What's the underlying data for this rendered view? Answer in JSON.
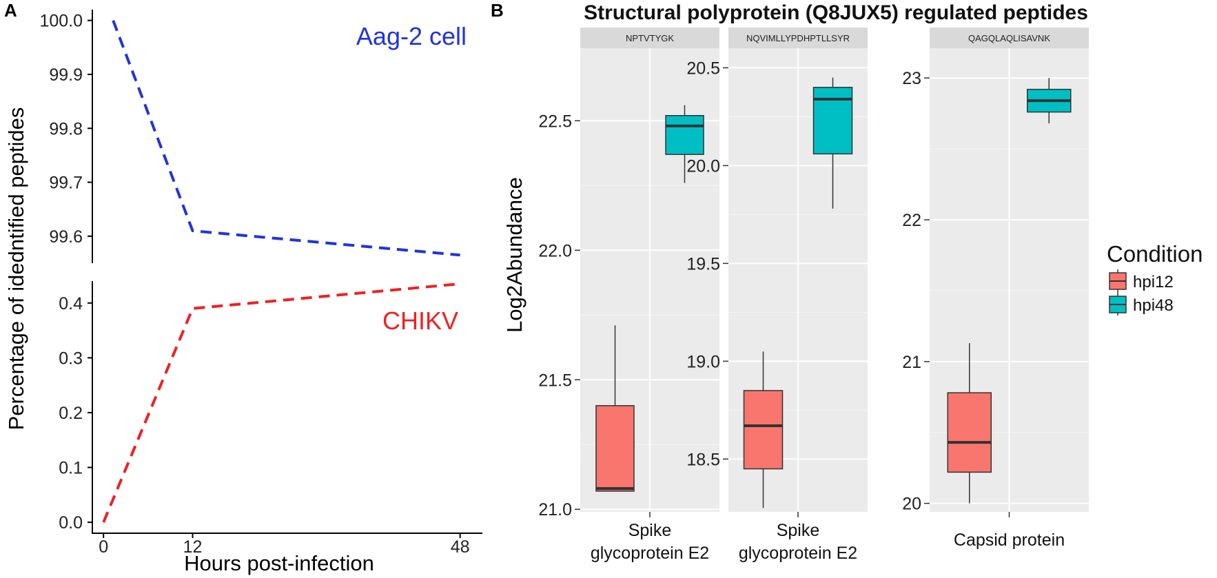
{
  "chart_data": [
    {
      "panel": "A",
      "type": "line",
      "ylabel": "Percentage of idedntified peptides",
      "xlabel": "Hours post-infection",
      "x_ticks": [
        "0",
        "12",
        "48"
      ],
      "x_values": [
        0,
        12,
        48
      ],
      "xlim": [
        -1.5,
        51
      ],
      "upper_ylim": [
        99.55,
        100.02
      ],
      "upper_ticks": [
        "100.0",
        "99.9",
        "99.8",
        "99.7",
        "99.6"
      ],
      "lower_ylim": [
        -0.02,
        0.44
      ],
      "lower_ticks": [
        "0.4",
        "0.3",
        "0.2",
        "0.1",
        "0.0"
      ],
      "series": [
        {
          "name": "Aag-2 cell",
          "color": "#1f33e0",
          "x": [
            1.3,
            12,
            48
          ],
          "values": [
            100.0,
            99.61,
            99.565
          ]
        },
        {
          "name": "CHIKV",
          "color": "#f02020",
          "x": [
            0,
            12,
            48
          ],
          "values": [
            0.0,
            0.39,
            0.435
          ]
        }
      ]
    },
    {
      "panel": "B",
      "type": "box",
      "title": "Structural polyprotein (Q8JUX5) regulated peptides",
      "ylabel": "Log2Abundance",
      "legend": {
        "title": "Condition",
        "entries": [
          {
            "label": "hpi12",
            "color": "#f8766d"
          },
          {
            "label": "hpi48",
            "color": "#00bfc4"
          }
        ]
      },
      "facets": [
        {
          "strip": "NPTVTYGK",
          "xlabel_lines": [
            "Spike",
            "glycoprotein E2"
          ],
          "ylim": [
            20.99,
            22.78
          ],
          "ticks": [
            "21.0",
            "21.5",
            "22.0",
            "22.5"
          ],
          "boxes": [
            {
              "condition": "hpi12",
              "min": 21.07,
              "q1": 21.07,
              "median": 21.08,
              "q3": 21.4,
              "max": 21.71
            },
            {
              "condition": "hpi48",
              "min": 22.26,
              "q1": 22.37,
              "median": 22.48,
              "q3": 22.52,
              "max": 22.56
            }
          ]
        },
        {
          "strip": "NQVIMLLYPDHPTLLSYR",
          "xlabel_lines": [
            "Spike",
            "glycoprotein E2"
          ],
          "ylim": [
            18.23,
            20.6
          ],
          "ticks": [
            "18.5",
            "19.0",
            "19.5",
            "20.0",
            "20.5"
          ],
          "boxes": [
            {
              "condition": "hpi12",
              "min": 18.25,
              "q1": 18.45,
              "median": 18.67,
              "q3": 18.85,
              "max": 19.05
            },
            {
              "condition": "hpi48",
              "min": 19.78,
              "q1": 20.06,
              "median": 20.34,
              "q3": 20.4,
              "max": 20.45
            }
          ]
        },
        {
          "strip": "QAGQLAQLISAVNK",
          "xlabel_lines": [
            "Capsid protein"
          ],
          "ylim": [
            19.94,
            23.21
          ],
          "ticks": [
            "20",
            "21",
            "22",
            "23"
          ],
          "boxes": [
            {
              "condition": "hpi12",
              "min": 20.0,
              "q1": 20.22,
              "median": 20.43,
              "q3": 20.78,
              "max": 21.13
            },
            {
              "condition": "hpi48",
              "min": 22.68,
              "q1": 22.76,
              "median": 22.84,
              "q3": 22.92,
              "max": 23.0
            }
          ]
        }
      ]
    }
  ]
}
